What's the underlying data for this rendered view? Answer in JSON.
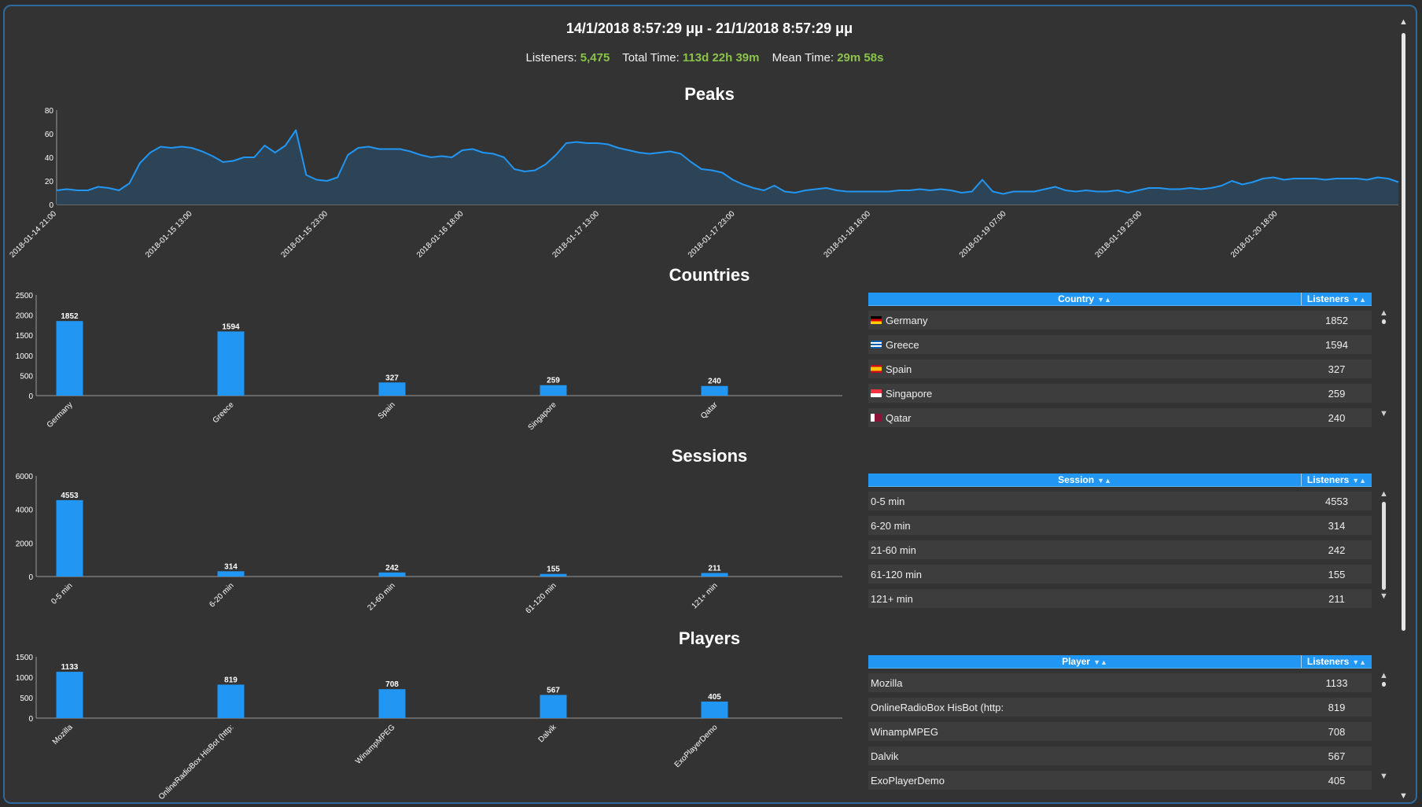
{
  "header": {
    "range": "14/1/2018 8:57:29 μμ - 21/1/2018 8:57:29 μμ",
    "listeners_label": "Listeners:",
    "listeners_value": "5,475",
    "total_label": "Total Time:",
    "total_value": "113d 22h 39m",
    "mean_label": "Mean Time:",
    "mean_value": "29m 58s"
  },
  "colors": {
    "accent": "#2196f3",
    "highlight": "#8bc34a",
    "background": "#333333",
    "row": "#3d3d3d"
  },
  "sections": {
    "peaks": "Peaks",
    "countries": "Countries",
    "sessions": "Sessions",
    "players": "Players"
  },
  "chart_data": [
    {
      "type": "area",
      "title": "Peaks",
      "ylim": [
        0,
        80
      ],
      "yticks": [
        0,
        20,
        40,
        60,
        80
      ],
      "xtick_labels": [
        "2018-01-14 21:00",
        "2018-01-15 13:00",
        "2018-01-15 23:00",
        "2018-01-16 18:00",
        "2018-01-17 13:00",
        "2018-01-17 23:00",
        "2018-01-18 16:00",
        "2018-01-19 07:00",
        "2018-01-19 23:00",
        "2018-01-20 18:00"
      ],
      "values": [
        12,
        13,
        12,
        12,
        15,
        14,
        12,
        18,
        35,
        44,
        49,
        48,
        49,
        48,
        45,
        41,
        36,
        37,
        40,
        40,
        50,
        44,
        50,
        63,
        25,
        21,
        20,
        23,
        42,
        48,
        49,
        47,
        47,
        47,
        45,
        42,
        40,
        41,
        40,
        46,
        47,
        44,
        43,
        40,
        30,
        28,
        29,
        34,
        42,
        52,
        53,
        52,
        52,
        51,
        48,
        46,
        44,
        43,
        44,
        45,
        43,
        36,
        30,
        29,
        27,
        21,
        17,
        14,
        12,
        16,
        11,
        10,
        12,
        13,
        14,
        12,
        11,
        11,
        11,
        11,
        11,
        12,
        12,
        13,
        12,
        13,
        12,
        10,
        11,
        21,
        11,
        9,
        11,
        11,
        11,
        13,
        15,
        12,
        11,
        12,
        11,
        11,
        12,
        10,
        12,
        14,
        14,
        13,
        13,
        14,
        13,
        14,
        16,
        20,
        17,
        19,
        22,
        23,
        21,
        22,
        22,
        22,
        21,
        22,
        22,
        22,
        21,
        23,
        22,
        19
      ]
    },
    {
      "type": "bar",
      "title": "Countries",
      "categories": [
        "Germany",
        "Greece",
        "Spain",
        "Singapore",
        "Qatar"
      ],
      "values": [
        1852,
        1594,
        327,
        259,
        240
      ],
      "ylim": [
        0,
        2500
      ],
      "yticks": [
        0,
        500,
        1000,
        1500,
        2000,
        2500
      ]
    },
    {
      "type": "bar",
      "title": "Sessions",
      "categories": [
        "0-5 min",
        "6-20 min",
        "21-60 min",
        "61-120 min",
        "121+ min"
      ],
      "values": [
        4553,
        314,
        242,
        155,
        211
      ],
      "ylim": [
        0,
        6000
      ],
      "yticks": [
        0,
        2000,
        4000,
        6000
      ]
    },
    {
      "type": "bar",
      "title": "Players",
      "categories": [
        "Mozilla",
        "OnlineRadioBox HisBot (http:",
        "WinampMPEG",
        "Dalvik",
        "ExoPlayerDemo"
      ],
      "values": [
        1133,
        819,
        708,
        567,
        405
      ],
      "ylim": [
        0,
        1500
      ],
      "yticks": [
        0,
        500,
        1000,
        1500
      ]
    }
  ],
  "tables": {
    "countries": {
      "col1": "Country",
      "col2": "Listeners",
      "rows": [
        {
          "name": "Germany",
          "value": "1852",
          "flag": "de"
        },
        {
          "name": "Greece",
          "value": "1594",
          "flag": "gr"
        },
        {
          "name": "Spain",
          "value": "327",
          "flag": "es"
        },
        {
          "name": "Singapore",
          "value": "259",
          "flag": "sg"
        },
        {
          "name": "Qatar",
          "value": "240",
          "flag": "qa"
        }
      ]
    },
    "sessions": {
      "col1": "Session",
      "col2": "Listeners",
      "rows": [
        {
          "name": "0-5 min",
          "value": "4553"
        },
        {
          "name": "6-20 min",
          "value": "314"
        },
        {
          "name": "21-60 min",
          "value": "242"
        },
        {
          "name": "61-120 min",
          "value": "155"
        },
        {
          "name": "121+ min",
          "value": "211"
        }
      ]
    },
    "players": {
      "col1": "Player",
      "col2": "Listeners",
      "rows": [
        {
          "name": "Mozilla",
          "value": "1133"
        },
        {
          "name": "OnlineRadioBox HisBot (http:",
          "value": "819"
        },
        {
          "name": "WinampMPEG",
          "value": "708"
        },
        {
          "name": "Dalvik",
          "value": "567"
        },
        {
          "name": "ExoPlayerDemo",
          "value": "405"
        }
      ]
    }
  },
  "icons": {
    "sort": "sort-arrows-icon",
    "scroll_up": "scroll-up-icon",
    "scroll_down": "scroll-down-icon"
  }
}
